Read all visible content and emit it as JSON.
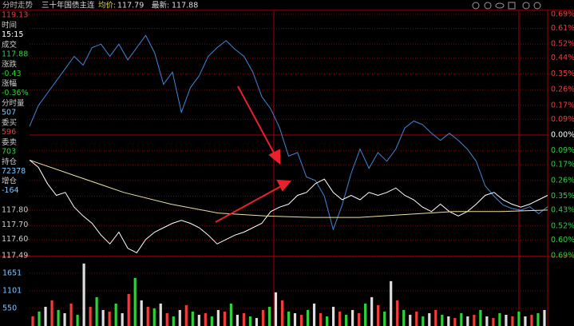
{
  "header": {
    "tab": "分时走势",
    "instrument": "三十年国债主连",
    "avg_label": "均价:",
    "avg_value": "117.79",
    "last_label": "最新:",
    "last_value": "117.88"
  },
  "info_panel": [
    {
      "label": "时间",
      "value": "15:15"
    },
    {
      "label": "成交",
      "value": "117.88"
    },
    {
      "label": "涨跌",
      "value": "-0.43"
    },
    {
      "label": "涨幅",
      "value": "-0.36%"
    },
    {
      "label": "分时量",
      "value": "507"
    },
    {
      "label": "委买",
      "value": "596"
    },
    {
      "label": "委卖",
      "value": "703"
    },
    {
      "label": "持仓",
      "value": "72378"
    },
    {
      "label": "增仓",
      "value": "-164"
    }
  ],
  "chart_data": [
    {
      "type": "line",
      "ylim": [
        117.49,
        119.13
      ],
      "yticks": [
        119.13,
        {
          "value": 117.8,
          "label": "117.80"
        },
        {
          "value": 117.7,
          "label": "117.70"
        },
        {
          "value": 117.6,
          "label": "117.60"
        },
        117.49
      ],
      "y2lim": [
        -0.69,
        0.69
      ],
      "y2ticks": [
        {
          "value": 0.69,
          "label": "0.69%"
        },
        {
          "value": 0.61,
          "label": "0.61%"
        },
        {
          "value": 0.52,
          "label": "0.52%"
        },
        {
          "value": 0.44,
          "label": "0.44%"
        },
        {
          "value": 0.35,
          "label": "0.35%"
        },
        {
          "value": 0.26,
          "label": "0.26%"
        },
        {
          "value": 0.17,
          "label": "0.17%"
        },
        {
          "value": 0.09,
          "label": "0.09%"
        },
        {
          "value": 0,
          "label": "0.00%"
        },
        {
          "value": -0.09,
          "label": "0.09%"
        },
        {
          "value": -0.17,
          "label": "0.17%"
        },
        {
          "value": -0.26,
          "label": "0.26%"
        },
        {
          "value": -0.35,
          "label": "0.35%"
        },
        {
          "value": -0.43,
          "label": "0.43%"
        },
        {
          "value": -0.52,
          "label": "0.52%"
        },
        {
          "value": -0.6,
          "label": "0.60%"
        },
        {
          "value": -0.69,
          "label": "0.69%"
        }
      ],
      "series": [
        {
          "color": "#3f86d8",
          "axis": "y2",
          "values": [
            0.05,
            0.17,
            0.24,
            0.31,
            0.38,
            0.45,
            0.4,
            0.5,
            0.52,
            0.45,
            0.52,
            0.43,
            0.5,
            0.57,
            0.47,
            0.29,
            0.36,
            0.13,
            0.27,
            0.34,
            0.45,
            0.5,
            0.54,
            0.49,
            0.45,
            0.36,
            0.22,
            0.15,
            0.04,
            -0.12,
            -0.1,
            -0.24,
            -0.26,
            -0.35,
            -0.54,
            -0.4,
            -0.22,
            -0.08,
            -0.19,
            -0.1,
            -0.15,
            -0.08,
            0.04,
            0.08,
            0.06,
            0.01,
            -0.03,
            0.01,
            -0.03,
            -0.08,
            -0.15,
            -0.29,
            -0.35,
            -0.4,
            -0.42,
            -0.43,
            -0.41,
            -0.45,
            -0.41
          ]
        },
        {
          "color": "#ffffff",
          "values": [
            118.14,
            118.09,
            117.98,
            117.9,
            117.92,
            117.82,
            117.76,
            117.71,
            117.63,
            117.57,
            117.65,
            117.54,
            117.51,
            117.6,
            117.65,
            117.68,
            117.71,
            117.73,
            117.71,
            117.68,
            117.63,
            117.57,
            117.6,
            117.63,
            117.65,
            117.68,
            117.71,
            117.79,
            117.82,
            117.84,
            117.9,
            117.92,
            117.98,
            118.01,
            117.92,
            117.87,
            117.9,
            117.87,
            117.92,
            117.9,
            117.92,
            117.95,
            117.9,
            117.87,
            117.82,
            117.79,
            117.84,
            117.79,
            117.76,
            117.79,
            117.84,
            117.9,
            117.92,
            117.87,
            117.84,
            117.82,
            117.84,
            117.87,
            117.9
          ]
        },
        {
          "color": "#e8e3a0",
          "values": [
            118.14,
            118.03,
            117.92,
            117.84,
            117.78,
            117.76,
            117.75,
            117.75,
            117.77,
            117.79,
            117.79,
            117.8
          ]
        }
      ]
    },
    {
      "type": "bar",
      "ylim": [
        0,
        2144
      ],
      "yticks": [
        1651,
        1101,
        550
      ],
      "values": [
        300,
        450,
        600,
        800,
        500,
        400,
        700,
        350,
        1950,
        600,
        900,
        500,
        450,
        700,
        400,
        1000,
        1500,
        800,
        600,
        550,
        700,
        400,
        300,
        500,
        650,
        450,
        350,
        400,
        300,
        500,
        450,
        700,
        350,
        400,
        300,
        250,
        500,
        600,
        1050,
        800,
        450,
        400,
        350,
        500,
        700,
        400,
        300,
        600,
        450,
        350,
        500,
        400,
        700,
        900,
        650,
        450,
        1400,
        800,
        500,
        350,
        450,
        300,
        400,
        500,
        350,
        300,
        250,
        400,
        300,
        350,
        500,
        300,
        250,
        400,
        350,
        300,
        450,
        300,
        350,
        400,
        500
      ]
    }
  ]
}
